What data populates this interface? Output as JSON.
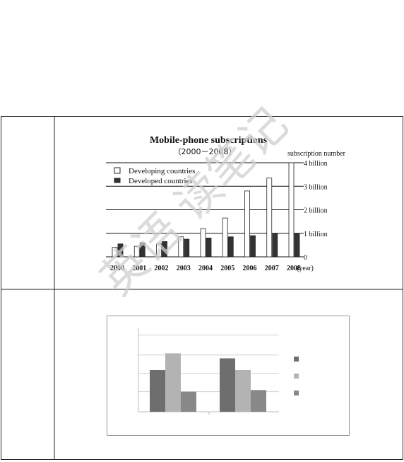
{
  "watermark": {
    "text": "英语  读笔记",
    "color": "#d9d9d9"
  },
  "colors": {
    "border": "#222222",
    "developing_fill": "#ffffff",
    "developed_fill": "#333333",
    "chart2_dark": "#6e6e6e",
    "chart2_light": "#b3b3b3",
    "chart2_mid": "#888888"
  },
  "chart_data": [
    {
      "type": "bar",
      "title": "Mobile-phone subscriptions",
      "subtitle": "（2000－2008）",
      "ylabel": "subscription number",
      "xlabel_suffix": "(year)",
      "categories": [
        "2000",
        "2001",
        "2002",
        "2003",
        "2004",
        "2005",
        "2006",
        "2007",
        "2008"
      ],
      "ylim": [
        0,
        4
      ],
      "yticks": [
        0,
        1,
        2,
        3,
        4
      ],
      "ytick_labels": [
        "0",
        "1 billion",
        "2 billion",
        "3 billion",
        "4 billion"
      ],
      "grid": true,
      "legend_position": "top-left",
      "series": [
        {
          "name": "Developing countries",
          "values": [
            0.4,
            0.45,
            0.55,
            0.85,
            1.2,
            1.65,
            2.8,
            3.35,
            4.0
          ]
        },
        {
          "name": "Developed countries",
          "values": [
            0.55,
            0.6,
            0.65,
            0.75,
            0.8,
            0.85,
            0.9,
            1.0,
            1.0
          ]
        }
      ]
    },
    {
      "type": "bar",
      "categories": [
        "",
        ""
      ],
      "ylim": [
        0,
        5
      ],
      "grid": true,
      "legend_position": "right",
      "series": [
        {
          "values": [
            2.5,
            3.2
          ]
        },
        {
          "values": [
            3.5,
            2.5
          ]
        },
        {
          "values": [
            1.2,
            1.3
          ]
        }
      ]
    }
  ]
}
